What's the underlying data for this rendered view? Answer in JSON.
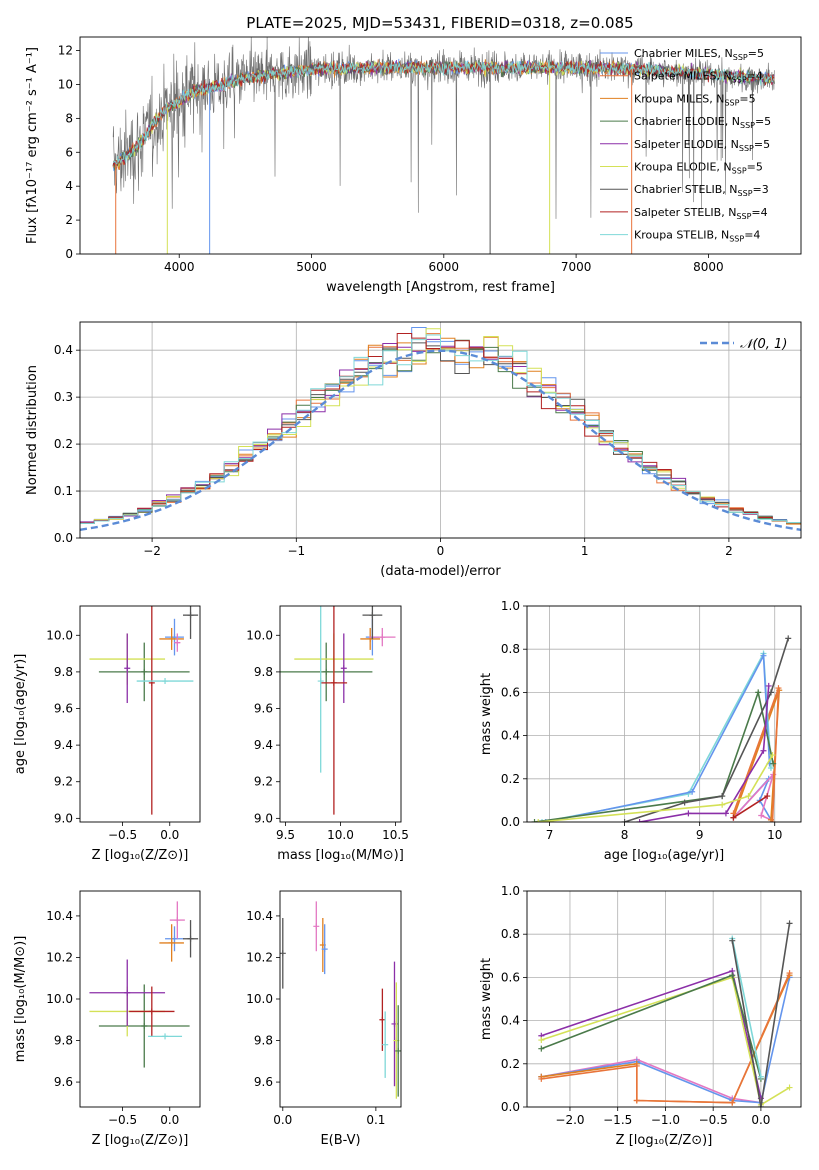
{
  "title": "PLATE=2025, MJD=53431, FIBERID=0318, z=0.085",
  "colors": {
    "Chabrier MILES": "#6495ed",
    "Salpeter MILES": "#e8743b",
    "Kroupa MILES": "#e08020",
    "Chabrier ELODIE": "#4a7a4a",
    "Salpeter ELODIE": "#8b2fa8",
    "Kroupa ELODIE": "#d4e157",
    "Chabrier STELIB": "#555555",
    "Salpeter STELIB": "#b22222",
    "Kroupa STELIB": "#7fd8d8",
    "Chabrier MILES (bottom)": "#e377c2",
    "gaussian": "#5b8bd6"
  },
  "chart_data": [
    {
      "id": "spectrum",
      "type": "line",
      "title": "PLATE=2025, MJD=53431, FIBERID=0318, z=0.085",
      "xlabel": "wavelength [Angstrom, rest frame]",
      "ylabel": "Flux [fλ10⁻¹⁷ erg cm⁻² s⁻¹ A⁻¹]",
      "xlim": [
        3250,
        8700
      ],
      "ylim": [
        0,
        12.8
      ],
      "xticks": [
        4000,
        5000,
        6000,
        7000,
        8000
      ],
      "yticks": [
        0,
        2,
        4,
        6,
        8,
        10,
        12
      ],
      "data_range": [
        3500,
        8500
      ],
      "continuum": [
        [
          3500,
          5.2
        ],
        [
          3600,
          5.8
        ],
        [
          3700,
          6.5
        ],
        [
          3800,
          7.6
        ],
        [
          3900,
          8.6
        ],
        [
          4000,
          9.0
        ],
        [
          4100,
          9.6
        ],
        [
          4300,
          9.9
        ],
        [
          4500,
          10.4
        ],
        [
          5000,
          10.9
        ],
        [
          5500,
          11.0
        ],
        [
          6000,
          11.0
        ],
        [
          6500,
          11.0
        ],
        [
          7000,
          11.0
        ],
        [
          7500,
          10.9
        ],
        [
          8000,
          10.6
        ],
        [
          8500,
          10.3
        ]
      ],
      "legend": [
        {
          "name": "Chabrier MILES, N",
          "sub": "SSP",
          "tail": "=5",
          "color": "#6495ed"
        },
        {
          "name": "Salpeter MILES, N",
          "sub": "SSP",
          "tail": "=4",
          "color": "#e8743b"
        },
        {
          "name": "Kroupa MILES, N",
          "sub": "SSP",
          "tail": "=5",
          "color": "#e08020"
        },
        {
          "name": "Chabrier ELODIE, N",
          "sub": "SSP",
          "tail": "=5",
          "color": "#4a7a4a"
        },
        {
          "name": "Salpeter ELODIE, N",
          "sub": "SSP",
          "tail": "=5",
          "color": "#8b2fa8"
        },
        {
          "name": "Kroupa ELODIE, N",
          "sub": "SSP",
          "tail": "=5",
          "color": "#d4e157"
        },
        {
          "name": "Chabrier STELIB, N",
          "sub": "SSP",
          "tail": "=3",
          "color": "#555555"
        },
        {
          "name": "Salpeter STELIB, N",
          "sub": "SSP",
          "tail": "=4",
          "color": "#b22222"
        },
        {
          "name": "Kroupa STELIB, N",
          "sub": "SSP",
          "tail": "=4",
          "color": "#7fd8d8"
        }
      ]
    },
    {
      "id": "residuals",
      "type": "line",
      "xlabel": "(data-model)/error",
      "ylabel": "Normed distribution",
      "xlim": [
        -2.5,
        2.5
      ],
      "ylim": [
        0,
        0.46
      ],
      "xticks": [
        -2,
        -1,
        0,
        1,
        2
      ],
      "yticks": [
        0.0,
        0.1,
        0.2,
        0.3,
        0.4
      ],
      "legend": "𝒩(0, 1)",
      "bin_width": 0.1,
      "grid": true
    },
    {
      "id": "age_vs_Z",
      "type": "scatter",
      "xlabel": "Z [log₁₀(Z/Z⊙)]",
      "ylabel": "age [log₁₀(age/yr)]",
      "xlim": [
        -0.95,
        0.32
      ],
      "ylim": [
        8.98,
        10.16
      ],
      "xticks": [
        -0.5,
        0.0
      ],
      "yticks": [
        9.0,
        9.2,
        9.4,
        9.6,
        9.8,
        10.0
      ],
      "points": [
        {
          "x": 0.05,
          "y": 9.99,
          "xerr": 0.1,
          "yerr": 0.1,
          "color": "#6495ed"
        },
        {
          "x": 0.02,
          "y": 9.98,
          "xerr": 0.13,
          "yerr": 0.06,
          "color": "#e08020"
        },
        {
          "x": 0.08,
          "y": 9.96,
          "xerr": 0.03,
          "yerr": 0.05,
          "color": "#e377c2"
        },
        {
          "x": -0.27,
          "y": 9.8,
          "xerr": 0.48,
          "yerr": 0.16,
          "color": "#4a7a4a"
        },
        {
          "x": -0.45,
          "y": 9.87,
          "xerr": 0.4,
          "yerr": 0.14,
          "color": "#d4e157"
        },
        {
          "x": -0.45,
          "y": 9.82,
          "xerr": 0.0,
          "yerr": 0.19,
          "color": "#8b2fa8"
        },
        {
          "x": -0.19,
          "y": 9.74,
          "xerr": 0.0,
          "yerr": 0.72,
          "color": "#b22222"
        },
        {
          "x": -0.05,
          "y": 9.75,
          "xerr": 0.3,
          "yerr": 0.0,
          "color": "#7fd8d8"
        },
        {
          "x": 0.22,
          "y": 10.11,
          "xerr": 0.08,
          "yerr": 0.13,
          "color": "#555555"
        }
      ]
    },
    {
      "id": "age_vs_mass",
      "type": "scatter",
      "xlabel": "mass [log₁₀(M/M⊙)]",
      "xlim": [
        9.45,
        10.55
      ],
      "ylim": [
        8.98,
        10.16
      ],
      "xticks": [
        9.5,
        10.0,
        10.5
      ],
      "yticks": [
        9.0,
        9.2,
        9.4,
        9.6,
        9.8,
        10.0
      ],
      "points": [
        {
          "x": 10.29,
          "y": 9.99,
          "xerr": 0.06,
          "yerr": 0.1,
          "color": "#6495ed"
        },
        {
          "x": 10.27,
          "y": 9.98,
          "xerr": 0.09,
          "yerr": 0.06,
          "color": "#e08020"
        },
        {
          "x": 10.38,
          "y": 9.99,
          "xerr": 0.12,
          "yerr": 0.05,
          "color": "#e377c2"
        },
        {
          "x": 9.87,
          "y": 9.8,
          "xerr": 0.42,
          "yerr": 0.16,
          "color": "#4a7a4a"
        },
        {
          "x": 9.94,
          "y": 9.87,
          "xerr": 0.36,
          "yerr": 0.14,
          "color": "#d4e157"
        },
        {
          "x": 10.03,
          "y": 9.82,
          "xerr": 0.0,
          "yerr": 0.19,
          "color": "#8b2fa8"
        },
        {
          "x": 9.94,
          "y": 9.74,
          "xerr": 0.12,
          "yerr": 0.72,
          "color": "#b22222"
        },
        {
          "x": 9.82,
          "y": 9.75,
          "xerr": 0.0,
          "yerr": 0.5,
          "color": "#7fd8d8"
        },
        {
          "x": 10.29,
          "y": 10.11,
          "xerr": 0.09,
          "yerr": 0.13,
          "color": "#555555"
        }
      ]
    },
    {
      "id": "massweight_vs_age",
      "type": "line",
      "xlabel": "age [log₁₀(age/yr)]",
      "ylabel": "mass weight",
      "xlim": [
        6.7,
        10.35
      ],
      "ylim": [
        0,
        1.0
      ],
      "xticks": [
        7,
        8,
        9,
        10
      ],
      "yticks": [
        0.0,
        0.2,
        0.4,
        0.6,
        0.8,
        1.0
      ],
      "grid": true,
      "series": [
        {
          "color": "#6495ed",
          "x": [
            9.45,
            9.92,
            9.8,
            9.95
          ],
          "y": [
            0.02,
            0.2,
            0.1,
            0.01
          ]
        },
        {
          "color": "#e377c2",
          "x": [
            9.45,
            9.98,
            9.82,
            9.95
          ],
          "y": [
            0.02,
            0.22,
            0.03,
            0.01
          ]
        },
        {
          "color": "#e08020",
          "x": [
            9.45,
            10.06,
            9.95
          ],
          "y": [
            0.02,
            0.61,
            0.01
          ]
        },
        {
          "color": "#e8743b",
          "x": [
            9.45,
            10.05,
            9.97
          ],
          "y": [
            0.04,
            0.62,
            0.0
          ]
        },
        {
          "color": "#7fd8d8",
          "x": [
            6.9,
            8.85,
            9.85,
            9.95
          ],
          "y": [
            0.0,
            0.13,
            0.78,
            0.25
          ]
        },
        {
          "color": "#6495ed",
          "x": [
            6.95,
            8.9,
            9.85,
            9.93
          ],
          "y": [
            0.0,
            0.14,
            0.77,
            0.27
          ]
        },
        {
          "color": "#4a7a4a",
          "x": [
            6.8,
            9.3,
            9.78,
            9.98
          ],
          "y": [
            0.0,
            0.12,
            0.6,
            0.27
          ]
        },
        {
          "color": "#555555",
          "x": [
            8.0,
            8.8,
            9.3,
            9.95,
            10.18
          ],
          "y": [
            0.0,
            0.09,
            0.12,
            0.6,
            0.85
          ]
        },
        {
          "color": "#8b2fa8",
          "x": [
            8.2,
            8.85,
            9.35,
            9.85,
            9.92
          ],
          "y": [
            0.0,
            0.04,
            0.04,
            0.33,
            0.63
          ]
        },
        {
          "color": "#d4e157",
          "x": [
            6.85,
            9.3,
            9.65,
            9.97
          ],
          "y": [
            0.0,
            0.08,
            0.12,
            0.31
          ]
        },
        {
          "color": "#b22222",
          "x": [
            9.45,
            9.9
          ],
          "y": [
            0.02,
            0.12
          ]
        }
      ]
    },
    {
      "id": "mass_vs_Z",
      "type": "scatter",
      "xlabel": "Z [log₁₀(Z/Z⊙)]",
      "ylabel": "mass [log₁₀(M/M⊙)]",
      "xlim": [
        -0.95,
        0.32
      ],
      "ylim": [
        9.48,
        10.52
      ],
      "xticks": [
        -0.5,
        0.0
      ],
      "yticks": [
        9.6,
        9.8,
        10.0,
        10.2,
        10.4
      ],
      "points": [
        {
          "x": 0.05,
          "y": 10.29,
          "xerr": 0.1,
          "yerr": 0.06,
          "color": "#6495ed"
        },
        {
          "x": 0.02,
          "y": 10.27,
          "xerr": 0.13,
          "yerr": 0.09,
          "color": "#e08020"
        },
        {
          "x": 0.08,
          "y": 10.38,
          "xerr": 0.08,
          "yerr": 0.09,
          "color": "#e377c2"
        },
        {
          "x": -0.27,
          "y": 9.87,
          "xerr": 0.48,
          "yerr": 0.2,
          "color": "#4a7a4a"
        },
        {
          "x": -0.45,
          "y": 9.94,
          "xerr": 0.4,
          "yerr": 0.12,
          "color": "#d4e157"
        },
        {
          "x": -0.45,
          "y": 10.03,
          "xerr": 0.4,
          "yerr": 0.16,
          "color": "#8b2fa8"
        },
        {
          "x": -0.19,
          "y": 9.94,
          "xerr": 0.24,
          "yerr": 0.12,
          "color": "#b22222"
        },
        {
          "x": -0.05,
          "y": 9.82,
          "xerr": 0.18,
          "yerr": 0.0,
          "color": "#7fd8d8"
        },
        {
          "x": 0.22,
          "y": 10.29,
          "xerr": 0.08,
          "yerr": 0.09,
          "color": "#555555"
        }
      ]
    },
    {
      "id": "mass_vs_EBV",
      "type": "scatter",
      "xlabel": "E(B-V)",
      "xlim": [
        -0.003,
        0.127
      ],
      "ylim": [
        9.48,
        10.52
      ],
      "xticks": [
        0.0,
        0.1
      ],
      "yticks": [
        9.6,
        9.8,
        10.0,
        10.2,
        10.4
      ],
      "points": [
        {
          "x": 0.0,
          "y": 10.22,
          "yerr": 0.17,
          "color": "#555555"
        },
        {
          "x": 0.036,
          "y": 10.35,
          "yerr": 0.12,
          "color": "#e377c2"
        },
        {
          "x": 0.043,
          "y": 10.26,
          "yerr": 0.13,
          "color": "#e08020"
        },
        {
          "x": 0.045,
          "y": 10.24,
          "yerr": 0.12,
          "color": "#6495ed"
        },
        {
          "x": 0.107,
          "y": 9.9,
          "yerr": 0.15,
          "color": "#b22222"
        },
        {
          "x": 0.11,
          "y": 9.78,
          "yerr": 0.16,
          "color": "#7fd8d8"
        },
        {
          "x": 0.12,
          "y": 9.88,
          "yerr": 0.3,
          "color": "#8b2fa8"
        },
        {
          "x": 0.122,
          "y": 9.8,
          "yerr": 0.28,
          "color": "#d4e157"
        },
        {
          "x": 0.124,
          "y": 9.75,
          "yerr": 0.22,
          "color": "#4a7a4a"
        }
      ]
    },
    {
      "id": "massweight_vs_Z",
      "type": "line",
      "xlabel": "Z [log₁₀(Z/Z⊙)]",
      "ylabel": "mass weight",
      "xlim": [
        -2.45,
        0.42
      ],
      "ylim": [
        0,
        1.0
      ],
      "xticks": [
        -2.0,
        -1.5,
        -1.0,
        -0.5,
        0.0
      ],
      "yticks": [
        0.0,
        0.2,
        0.4,
        0.6,
        0.8,
        1.0
      ],
      "grid": true,
      "series": [
        {
          "color": "#e377c2",
          "x": [
            -2.3,
            -1.3,
            -0.3,
            0.0
          ],
          "y": [
            0.14,
            0.22,
            0.04,
            0.02
          ]
        },
        {
          "color": "#6495ed",
          "x": [
            -2.3,
            -1.3,
            -0.3,
            0.0,
            0.3
          ],
          "y": [
            0.14,
            0.21,
            0.03,
            0.02,
            0.6
          ]
        },
        {
          "color": "#e08020",
          "x": [
            -2.3,
            -1.3,
            -1.3,
            -0.3,
            0.3
          ],
          "y": [
            0.14,
            0.2,
            0.03,
            0.02,
            0.61
          ]
        },
        {
          "color": "#e8743b",
          "x": [
            -2.3,
            -1.3,
            -1.3,
            -0.3,
            0.3
          ],
          "y": [
            0.13,
            0.19,
            0.03,
            0.02,
            0.62
          ]
        },
        {
          "color": "#8b2fa8",
          "x": [
            -2.3,
            -0.3,
            0.0
          ],
          "y": [
            0.33,
            0.63,
            0.04
          ]
        },
        {
          "color": "#d4e157",
          "x": [
            -2.3,
            -0.3,
            0.0,
            0.3
          ],
          "y": [
            0.31,
            0.6,
            0.01,
            0.09
          ]
        },
        {
          "color": "#4a7a4a",
          "x": [
            -2.3,
            -0.3,
            0.0
          ],
          "y": [
            0.27,
            0.61,
            0.13
          ]
        },
        {
          "color": "#7fd8d8",
          "x": [
            -0.3,
            0.0
          ],
          "y": [
            0.78,
            0.14
          ]
        },
        {
          "color": "#555555",
          "x": [
            -0.3,
            0.0,
            0.3
          ],
          "y": [
            0.77,
            0.0,
            0.85
          ]
        }
      ]
    }
  ]
}
